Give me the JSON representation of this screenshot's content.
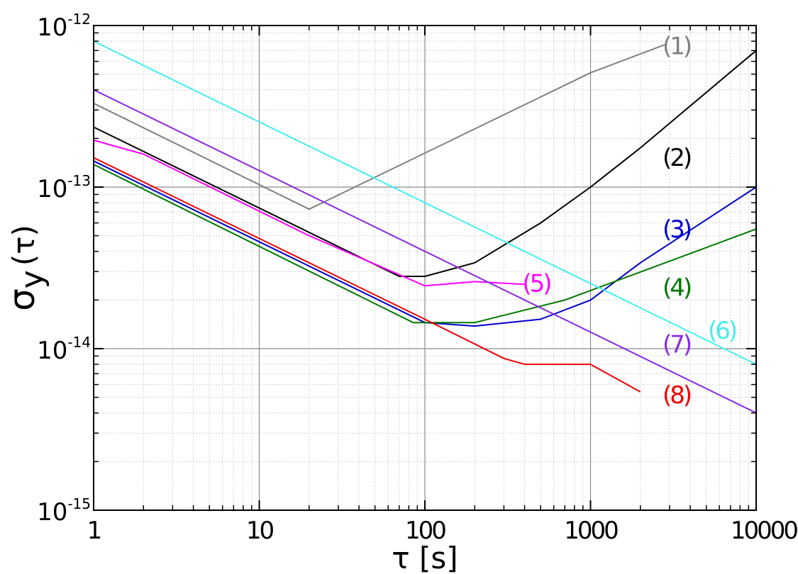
{
  "chart_data": {
    "type": "line",
    "xscale": "log",
    "yscale": "log",
    "xlim": [
      1,
      10000
    ],
    "ylim": [
      1e-15,
      1e-12
    ],
    "xlabel": "τ [s]",
    "ylabel": "σy(τ)",
    "ylabel_main": "σ",
    "ylabel_sub": "y",
    "ylabel_arg": "(τ)",
    "grid": true,
    "minor_grid": true,
    "x_ticks": [
      {
        "value": 1,
        "label": "1"
      },
      {
        "value": 10,
        "label": "10"
      },
      {
        "value": 100,
        "label": "100"
      },
      {
        "value": 1000,
        "label": "1000"
      },
      {
        "value": 10000,
        "label": "10000"
      }
    ],
    "y_ticks": [
      {
        "value": 1e-15,
        "base": "10",
        "exp": "-15"
      },
      {
        "value": 1e-14,
        "base": "10",
        "exp": "-14"
      },
      {
        "value": 1e-13,
        "base": "10",
        "exp": "-13"
      },
      {
        "value": 1e-12,
        "base": "10",
        "exp": "-12"
      }
    ],
    "series": [
      {
        "label": "(1)",
        "color": "#808080",
        "points": [
          [
            1,
            3.3e-13
          ],
          [
            20,
            7.3e-14
          ],
          [
            1000,
            5.1e-13
          ],
          [
            2800,
            7.6e-13
          ]
        ],
        "label_at": [
          3300,
          7.5e-13
        ]
      },
      {
        "label": "(2)",
        "color": "#000000",
        "points": [
          [
            1,
            2.35e-13
          ],
          [
            70,
            2.8e-14
          ],
          [
            100,
            2.8e-14
          ],
          [
            200,
            3.4e-14
          ],
          [
            500,
            6e-14
          ],
          [
            1000,
            1e-13
          ],
          [
            2000,
            1.75e-13
          ],
          [
            10000,
            7e-13
          ]
        ],
        "label_at": [
          3300,
          1.53e-13
        ]
      },
      {
        "label": "(3)",
        "color": "#0000cc",
        "points": [
          [
            1,
            1.45e-13
          ],
          [
            100,
            1.45e-14
          ],
          [
            200,
            1.38e-14
          ],
          [
            500,
            1.52e-14
          ],
          [
            1000,
            2e-14
          ],
          [
            2000,
            3.4e-14
          ],
          [
            10000,
            1e-13
          ]
        ],
        "label_at": [
          3300,
          5.5e-14
        ]
      },
      {
        "label": "(4)",
        "color": "#007700",
        "points": [
          [
            1,
            1.38e-13
          ],
          [
            85,
            1.45e-14
          ],
          [
            200,
            1.45e-14
          ],
          [
            700,
            2e-14
          ],
          [
            10000,
            5.5e-14
          ]
        ],
        "label_at": [
          3300,
          2.4e-14
        ]
      },
      {
        "label": "(5)",
        "color": "#ff00ff",
        "points": [
          [
            1,
            1.95e-13
          ],
          [
            2,
            1.6e-13
          ],
          [
            20,
            5e-14
          ],
          [
            100,
            2.45e-14
          ],
          [
            200,
            2.6e-14
          ],
          [
            400,
            2.5e-14
          ]
        ],
        "label_at": [
          470,
          2.55e-14
        ]
      },
      {
        "label": "(6)",
        "color": "#44eeee",
        "points": [
          [
            1,
            8e-13
          ],
          [
            10000,
            8e-15
          ]
        ],
        "label_at": [
          6200,
          1.3e-14
        ]
      },
      {
        "label": "(7)",
        "color": "#8a2be2",
        "points": [
          [
            1,
            4e-13
          ],
          [
            10000,
            4e-15
          ]
        ],
        "label_at": [
          3300,
          1.07e-14
        ]
      },
      {
        "label": "(8)",
        "color": "#ee0000",
        "points": [
          [
            1,
            1.52e-13
          ],
          [
            100,
            1.52e-14
          ],
          [
            300,
            8.7e-15
          ],
          [
            400,
            8e-15
          ],
          [
            1000,
            8e-15
          ],
          [
            2000,
            5.4e-15
          ]
        ],
        "label_at": [
          3300,
          5.2e-15
        ]
      }
    ]
  }
}
